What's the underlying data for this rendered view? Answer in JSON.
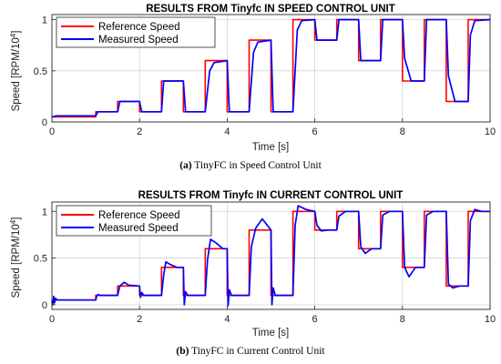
{
  "chart_data": [
    {
      "id": "a",
      "type": "line",
      "title": "RESULTS FROM Tinyfc IN SPEED CONTROL UNIT",
      "xlabel": "Time [s]",
      "ylabel_main": "Speed  [RPM/10",
      "ylabel_sup": "4",
      "ylabel_end": "]",
      "xlim": [
        0,
        10
      ],
      "ylim": [
        0,
        1.05
      ],
      "xticks": [
        "0",
        "2",
        "4",
        "6",
        "8",
        "10"
      ],
      "xtick_values": [
        0,
        2,
        4,
        6,
        8,
        10
      ],
      "yticks": [
        "0",
        "0.5",
        "1"
      ],
      "ytick_values": [
        0,
        0.5,
        1
      ],
      "grid": true,
      "legend_position": "top-left",
      "caption_label": "(a)",
      "caption_text": " TinyFC in Speed Control Unit",
      "series": [
        {
          "name": "Reference Speed",
          "color": "#ff0000",
          "x": [
            0,
            1,
            1,
            1.5,
            1.5,
            2,
            2,
            2.5,
            2.5,
            3,
            3,
            3.5,
            3.5,
            4,
            4,
            4.5,
            4.5,
            5,
            5,
            5.5,
            5.5,
            6,
            6,
            6.5,
            6.5,
            7,
            7,
            7.5,
            7.5,
            8,
            8,
            8.5,
            8.5,
            9,
            9,
            9.5,
            9.5,
            10
          ],
          "y": [
            0.05,
            0.05,
            0.1,
            0.1,
            0.2,
            0.2,
            0.1,
            0.1,
            0.4,
            0.4,
            0.1,
            0.1,
            0.6,
            0.6,
            0.1,
            0.1,
            0.8,
            0.8,
            0.1,
            0.1,
            1.0,
            1.0,
            0.8,
            0.8,
            1.0,
            1.0,
            0.6,
            0.6,
            1.0,
            1.0,
            0.4,
            0.4,
            1.0,
            1.0,
            0.2,
            0.2,
            1.0,
            1.0
          ]
        },
        {
          "name": "Measured Speed",
          "color": "#0000ff",
          "x": [
            0,
            0.1,
            1.0,
            1.05,
            1.5,
            1.55,
            2.0,
            2.05,
            2.5,
            2.55,
            3.0,
            3.05,
            3.5,
            3.6,
            3.7,
            4.0,
            4.05,
            4.5,
            4.6,
            4.7,
            5.0,
            5.05,
            5.5,
            5.6,
            5.7,
            6.0,
            6.05,
            6.5,
            6.55,
            7.0,
            7.05,
            7.5,
            7.55,
            8.0,
            8.05,
            8.2,
            8.5,
            8.55,
            9.0,
            9.05,
            9.2,
            9.5,
            9.55,
            9.65,
            10.0
          ],
          "y": [
            0.05,
            0.06,
            0.06,
            0.1,
            0.1,
            0.2,
            0.2,
            0.1,
            0.1,
            0.4,
            0.4,
            0.1,
            0.1,
            0.5,
            0.58,
            0.6,
            0.1,
            0.1,
            0.68,
            0.78,
            0.8,
            0.1,
            0.1,
            0.9,
            0.99,
            1.0,
            0.8,
            0.8,
            1.0,
            1.0,
            0.6,
            0.6,
            1.0,
            1.0,
            0.62,
            0.4,
            0.4,
            1.0,
            1.0,
            0.45,
            0.2,
            0.2,
            0.85,
            0.99,
            1.0
          ]
        }
      ]
    },
    {
      "id": "b",
      "type": "line",
      "title": "RESULTS FROM Tinyfc IN CURRENT CONTROL UNIT",
      "xlabel": "Time [s]",
      "ylabel_main": "Speed  [RPM/10",
      "ylabel_sup": "4",
      "ylabel_end": "]",
      "xlim": [
        0,
        10
      ],
      "ylim": [
        -0.05,
        1.1
      ],
      "xticks": [
        "0",
        "2",
        "4",
        "6",
        "8",
        "10"
      ],
      "xtick_values": [
        0,
        2,
        4,
        6,
        8,
        10
      ],
      "yticks": [
        "0",
        "0.5",
        "1"
      ],
      "ytick_values": [
        0,
        0.5,
        1
      ],
      "grid": true,
      "legend_position": "top-left",
      "caption_label": "(b)",
      "caption_text": " TinyFC in Current Control Unit",
      "series": [
        {
          "name": "Reference Speed",
          "color": "#ff0000",
          "x": [
            0,
            1,
            1,
            1.5,
            1.5,
            2,
            2,
            2.5,
            2.5,
            3,
            3,
            3.5,
            3.5,
            4,
            4,
            4.5,
            4.5,
            5,
            5,
            5.5,
            5.5,
            6,
            6,
            6.5,
            6.5,
            7,
            7,
            7.5,
            7.5,
            8,
            8,
            8.5,
            8.5,
            9,
            9,
            9.5,
            9.5,
            10
          ],
          "y": [
            0.05,
            0.05,
            0.1,
            0.1,
            0.2,
            0.2,
            0.1,
            0.1,
            0.4,
            0.4,
            0.1,
            0.1,
            0.6,
            0.6,
            0.1,
            0.1,
            0.8,
            0.8,
            0.1,
            0.1,
            1.0,
            1.0,
            0.8,
            0.8,
            1.0,
            1.0,
            0.6,
            0.6,
            1.0,
            1.0,
            0.4,
            0.4,
            1.0,
            1.0,
            0.2,
            0.2,
            1.0,
            1.0
          ]
        },
        {
          "name": "Measured Speed",
          "color": "#0000ff",
          "x": [
            0,
            0.02,
            0.04,
            0.06,
            0.08,
            0.12,
            1.0,
            1.02,
            1.05,
            1.1,
            1.5,
            1.55,
            1.65,
            1.75,
            2.0,
            2.02,
            2.05,
            2.1,
            2.5,
            2.55,
            2.6,
            2.7,
            2.85,
            3.0,
            3.02,
            3.05,
            3.1,
            3.5,
            3.55,
            3.62,
            3.75,
            3.9,
            4.0,
            4.02,
            4.05,
            4.1,
            4.5,
            4.55,
            4.65,
            4.8,
            5.0,
            5.02,
            5.05,
            5.1,
            5.5,
            5.55,
            5.62,
            5.8,
            6.0,
            6.05,
            6.15,
            6.3,
            6.5,
            6.55,
            6.7,
            7.0,
            7.05,
            7.15,
            7.3,
            7.5,
            7.55,
            7.7,
            8.0,
            8.05,
            8.15,
            8.3,
            8.5,
            8.55,
            8.7,
            9.0,
            9.05,
            9.15,
            9.3,
            9.45,
            9.5,
            9.55,
            9.65,
            9.8,
            10.0
          ],
          "y": [
            0.04,
            0.0,
            0.09,
            0.02,
            0.07,
            0.05,
            0.05,
            0.09,
            0.11,
            0.1,
            0.1,
            0.2,
            0.24,
            0.21,
            0.2,
            0.08,
            0.13,
            0.1,
            0.1,
            0.32,
            0.46,
            0.43,
            0.4,
            0.4,
            0.0,
            0.14,
            0.1,
            0.1,
            0.48,
            0.7,
            0.66,
            0.6,
            0.6,
            -0.01,
            0.16,
            0.1,
            0.1,
            0.62,
            0.82,
            0.92,
            0.8,
            0.0,
            0.18,
            0.1,
            0.1,
            0.85,
            1.06,
            1.02,
            1.0,
            0.85,
            0.79,
            0.8,
            0.8,
            0.95,
            1.0,
            1.0,
            0.62,
            0.55,
            0.6,
            0.6,
            0.96,
            1.0,
            1.0,
            0.4,
            0.3,
            0.4,
            0.4,
            0.96,
            1.0,
            1.0,
            0.22,
            0.18,
            0.2,
            0.2,
            0.2,
            0.9,
            1.02,
            1.0,
            1.0
          ]
        }
      ]
    }
  ]
}
